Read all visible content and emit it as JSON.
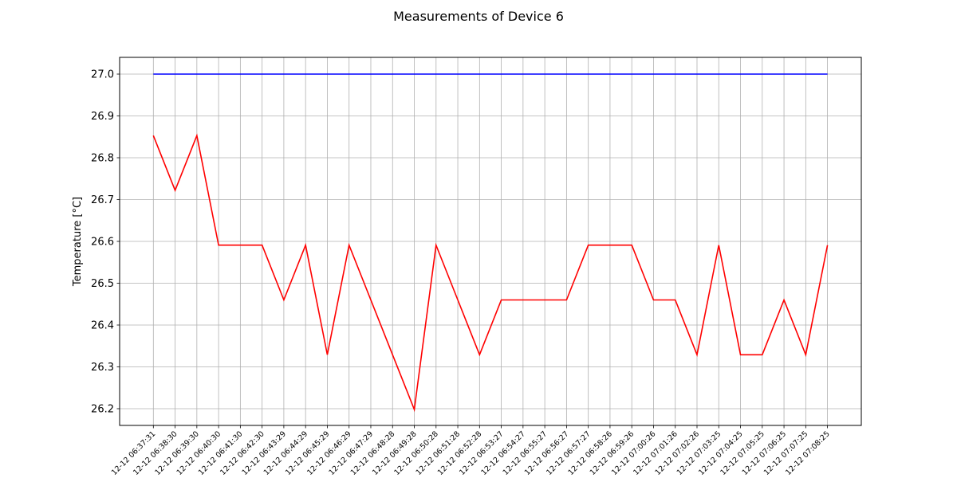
{
  "chart_data": {
    "type": "line",
    "title": "Measurements of Device 6",
    "xlabel": "",
    "ylabel": "Temperature [°C]",
    "ylim": [
      26.16,
      27.04
    ],
    "yticks": [
      26.2,
      26.3,
      26.4,
      26.5,
      26.6,
      26.7,
      26.8,
      26.9,
      27.0
    ],
    "ytick_labels": [
      "26.2",
      "26.3",
      "26.4",
      "26.5",
      "26.6",
      "26.7",
      "26.8",
      "26.9",
      "27.0"
    ],
    "grid": true,
    "categories": [
      "12-12 06:37:31",
      "12-12 06:38:30",
      "12-12 06:39:30",
      "12-12 06:40:30",
      "12-12 06:41:30",
      "12-12 06:42:30",
      "12-12 06:43:29",
      "12-12 06:44:29",
      "12-12 06:45:29",
      "12-12 06:46:29",
      "12-12 06:47:29",
      "12-12 06:48:28",
      "12-12 06:49:28",
      "12-12 06:50:28",
      "12-12 06:51:28",
      "12-12 06:52:28",
      "12-12 06:53:27",
      "12-12 06:54:27",
      "12-12 06:55:27",
      "12-12 06:56:27",
      "12-12 06:57:27",
      "12-12 06:58:26",
      "12-12 06:59:26",
      "12-12 07:00:26",
      "12-12 07:01:26",
      "12-12 07:02:26",
      "12-12 07:03:25",
      "12-12 07:04:25",
      "12-12 07:05:25",
      "12-12 07:06:25",
      "12-12 07:07:25",
      "12-12 07:08:25"
    ],
    "series": [
      {
        "color": "#0000ff",
        "values": [
          27.0,
          27.0,
          27.0,
          27.0,
          27.0,
          27.0,
          27.0,
          27.0,
          27.0,
          27.0,
          27.0,
          27.0,
          27.0,
          27.0,
          27.0,
          27.0,
          27.0,
          27.0,
          27.0,
          27.0,
          27.0,
          27.0,
          27.0,
          27.0,
          27.0,
          27.0,
          27.0,
          27.0,
          27.0,
          27.0,
          27.0,
          27.0
        ]
      },
      {
        "color": "#ff0000",
        "values": [
          26.853,
          26.722,
          26.853,
          26.591,
          26.591,
          26.591,
          26.46,
          26.591,
          26.329,
          26.591,
          26.46,
          26.329,
          26.198,
          26.591,
          26.46,
          26.329,
          26.46,
          26.46,
          26.46,
          26.46,
          26.591,
          26.591,
          26.591,
          26.46,
          26.46,
          26.329,
          26.591,
          26.329,
          26.329,
          26.46,
          26.329,
          26.591
        ]
      }
    ]
  }
}
